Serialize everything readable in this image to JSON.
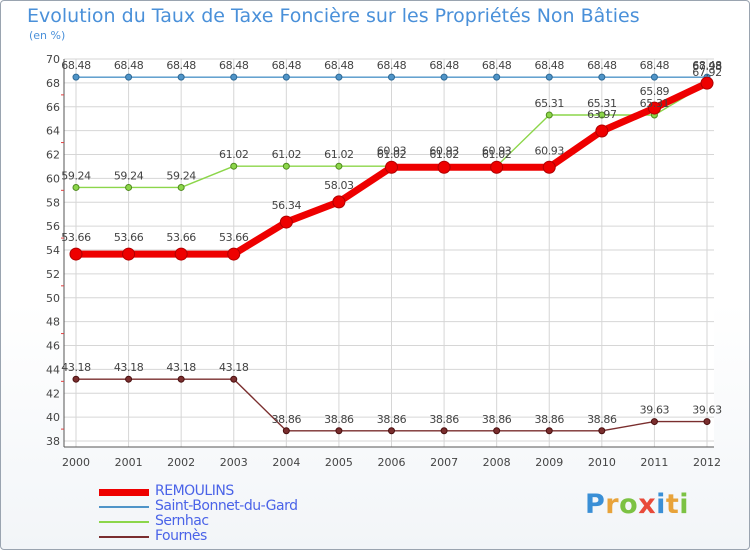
{
  "chart_data": {
    "type": "line",
    "title": "Evolution du Taux de Taxe Foncière sur les Propriétés Non Bâties",
    "ylabel": "(en %)",
    "xlabel": "",
    "categories": [
      "2000",
      "2001",
      "2002",
      "2003",
      "2004",
      "2005",
      "2006",
      "2007",
      "2008",
      "2009",
      "2010",
      "2011",
      "2012"
    ],
    "ylim": [
      37.5,
      70
    ],
    "yticks": [
      38,
      40,
      42,
      44,
      46,
      48,
      50,
      52,
      54,
      56,
      58,
      60,
      62,
      64,
      66,
      68,
      70
    ],
    "grid": true,
    "legend_position": "bottom-left",
    "series": [
      {
        "name": "REMOULINS",
        "color": "#ee0000",
        "values": [
          53.66,
          53.66,
          53.66,
          53.66,
          56.34,
          58.03,
          60.93,
          60.93,
          60.93,
          60.93,
          63.97,
          65.89,
          67.98
        ],
        "labels": [
          "53.66",
          "53.66",
          "53.66",
          "53.66",
          "56.34",
          "58.03",
          "60.93",
          "60.93",
          "60.93",
          "60.93",
          "63.97",
          "65.89",
          "67.98"
        ]
      },
      {
        "name": "Saint-Bonnet-du-Gard",
        "color": "#4f94c8",
        "values": [
          68.48,
          68.48,
          68.48,
          68.48,
          68.48,
          68.48,
          68.48,
          68.48,
          68.48,
          68.48,
          68.48,
          68.48,
          68.48
        ],
        "labels": [
          "68.48",
          "68.48",
          "68.48",
          "68.48",
          "68.48",
          "68.48",
          "68.48",
          "68.48",
          "68.48",
          "68.48",
          "68.48",
          "68.48",
          "68.48"
        ]
      },
      {
        "name": "Sernhac",
        "color": "#8cd64a",
        "values": [
          59.24,
          59.24,
          59.24,
          61.02,
          61.02,
          61.02,
          61.02,
          61.02,
          61.02,
          65.31,
          65.31,
          65.31,
          67.92
        ],
        "labels": [
          "59.24",
          "59.24",
          "59.24",
          "61.02",
          "61.02",
          "61.02",
          "61.02",
          "61.02",
          "61.02",
          "65.31",
          "65.31",
          "65.31",
          "67.92"
        ]
      },
      {
        "name": "Fournès",
        "color": "#7a2e2e",
        "values": [
          43.18,
          43.18,
          43.18,
          43.18,
          38.86,
          38.86,
          38.86,
          38.86,
          38.86,
          38.86,
          38.86,
          39.63,
          39.63
        ],
        "labels": [
          "43.18",
          "43.18",
          "43.18",
          "43.18",
          "38.86",
          "38.86",
          "38.86",
          "38.86",
          "38.86",
          "38.86",
          "38.86",
          "39.63",
          "39.63"
        ]
      }
    ]
  },
  "logo": {
    "letters": [
      "P",
      "r",
      "o",
      "x",
      "i",
      "t",
      "i"
    ],
    "colors": [
      "#3a8fd6",
      "#e8a33a",
      "#7cc243",
      "#e84a3a",
      "#3a8fd6",
      "#e8a33a",
      "#7cc243"
    ]
  }
}
